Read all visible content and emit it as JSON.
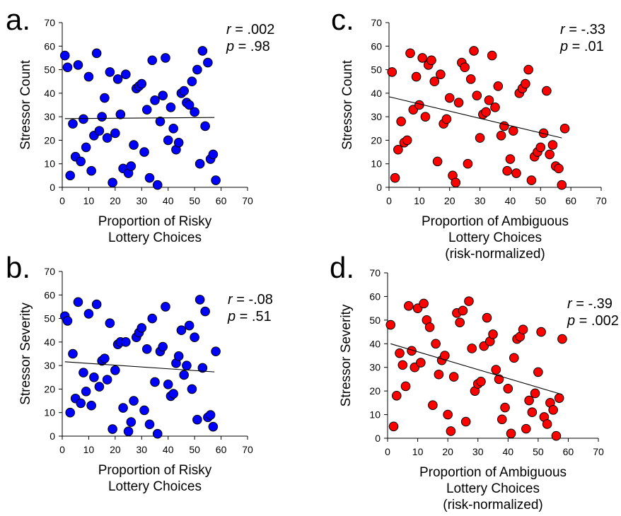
{
  "chart_data": [
    {
      "type": "scatter",
      "panel_label": "a.",
      "color": "#0000ff",
      "xlabel_lines": [
        "Proportion of Risky",
        "Lottery Choices"
      ],
      "ylabel": "Stressor Count",
      "xlim": [
        0,
        70
      ],
      "ylim": [
        0,
        70
      ],
      "xticks": [
        0,
        10,
        20,
        30,
        40,
        50,
        60,
        70
      ],
      "yticks": [
        0,
        10,
        20,
        30,
        40,
        50,
        60,
        70
      ],
      "stats": {
        "r_label": "r",
        "r_value": " = .002",
        "p_label": "p",
        "p_value": " = .98"
      },
      "trend": {
        "x": [
          1,
          57.5
        ],
        "y": [
          29.2,
          29.7
        ]
      },
      "points": [
        [
          1,
          56
        ],
        [
          2,
          51
        ],
        [
          3,
          5
        ],
        [
          4,
          27
        ],
        [
          5,
          13
        ],
        [
          6,
          52
        ],
        [
          7,
          11
        ],
        [
          8,
          29
        ],
        [
          9,
          17
        ],
        [
          10,
          47
        ],
        [
          11,
          7
        ],
        [
          12,
          22
        ],
        [
          13,
          57
        ],
        [
          14,
          24
        ],
        [
          15,
          30
        ],
        [
          16,
          38
        ],
        [
          17,
          21
        ],
        [
          18,
          49
        ],
        [
          19,
          2
        ],
        [
          20,
          23
        ],
        [
          21,
          46
        ],
        [
          22,
          31
        ],
        [
          23,
          8
        ],
        [
          24,
          48
        ],
        [
          25,
          6
        ],
        [
          26,
          9
        ],
        [
          27,
          18
        ],
        [
          28,
          42
        ],
        [
          29,
          43
        ],
        [
          30,
          44
        ],
        [
          31,
          15
        ],
        [
          32,
          33
        ],
        [
          33,
          4
        ],
        [
          34,
          54
        ],
        [
          35,
          37
        ],
        [
          36,
          1
        ],
        [
          37,
          28
        ],
        [
          38,
          39
        ],
        [
          39,
          55
        ],
        [
          40,
          20
        ],
        [
          41,
          34
        ],
        [
          42,
          25
        ],
        [
          43,
          16
        ],
        [
          44,
          19
        ],
        [
          45,
          40
        ],
        [
          46,
          41
        ],
        [
          47,
          36
        ],
        [
          48,
          35
        ],
        [
          49,
          45
        ],
        [
          50,
          32
        ],
        [
          51,
          50
        ],
        [
          52,
          10
        ],
        [
          53,
          58
        ],
        [
          54,
          26
        ],
        [
          55,
          53
        ],
        [
          56,
          12
        ],
        [
          57,
          14
        ],
        [
          58,
          3
        ]
      ]
    },
    {
      "type": "scatter",
      "panel_label": "b.",
      "color": "#0000ff",
      "xlabel_lines": [
        "Proportion of Risky",
        "Lottery Choices"
      ],
      "ylabel": "Stressor Severity",
      "xlim": [
        0,
        70
      ],
      "ylim": [
        0,
        70
      ],
      "xticks": [
        0,
        10,
        20,
        30,
        40,
        50,
        60,
        70
      ],
      "yticks": [
        0,
        10,
        20,
        30,
        40,
        50,
        60,
        70
      ],
      "stats": {
        "r_label": "r",
        "r_value": " = -.08",
        "p_label": "p",
        "p_value": " = .51"
      },
      "trend": {
        "x": [
          1,
          57.5
        ],
        "y": [
          31.6,
          27.3
        ]
      },
      "points": [
        [
          1,
          51
        ],
        [
          2,
          49
        ],
        [
          3,
          10
        ],
        [
          4,
          35
        ],
        [
          5,
          16
        ],
        [
          6,
          57
        ],
        [
          7,
          14
        ],
        [
          8,
          27
        ],
        [
          9,
          19
        ],
        [
          10,
          52
        ],
        [
          11,
          13
        ],
        [
          12,
          25
        ],
        [
          13,
          56
        ],
        [
          14,
          21
        ],
        [
          15,
          32
        ],
        [
          16,
          33
        ],
        [
          17,
          24
        ],
        [
          18,
          48
        ],
        [
          19,
          3
        ],
        [
          20,
          28
        ],
        [
          21,
          39
        ],
        [
          22,
          40
        ],
        [
          23,
          12
        ],
        [
          24,
          40
        ],
        [
          25,
          2
        ],
        [
          26,
          6
        ],
        [
          27,
          15
        ],
        [
          28,
          42
        ],
        [
          29,
          44
        ],
        [
          30,
          46
        ],
        [
          31,
          11
        ],
        [
          32,
          37
        ],
        [
          33,
          5
        ],
        [
          34,
          50
        ],
        [
          35,
          23
        ],
        [
          36,
          1
        ],
        [
          37,
          36
        ],
        [
          38,
          38
        ],
        [
          39,
          55
        ],
        [
          40,
          22
        ],
        [
          41,
          17
        ],
        [
          42,
          18
        ],
        [
          43,
          31
        ],
        [
          44,
          34
        ],
        [
          45,
          45
        ],
        [
          46,
          26
        ],
        [
          47,
          30
        ],
        [
          48,
          47
        ],
        [
          49,
          20
        ],
        [
          50,
          42
        ],
        [
          51,
          7
        ],
        [
          52,
          58
        ],
        [
          53,
          29
        ],
        [
          54,
          53
        ],
        [
          55,
          8
        ],
        [
          56,
          9
        ],
        [
          57,
          4
        ],
        [
          58,
          36
        ]
      ]
    },
    {
      "type": "scatter",
      "panel_label": "c.",
      "color": "#ff0000",
      "xlabel_lines": [
        "Proportion of Ambiguous",
        "Lottery Choices",
        "(risk-normalized)"
      ],
      "ylabel": "Stressor Count",
      "xlim": [
        0,
        70
      ],
      "ylim": [
        0,
        70
      ],
      "xticks": [
        0,
        10,
        20,
        30,
        40,
        50,
        60,
        70
      ],
      "yticks": [
        0,
        10,
        20,
        30,
        40,
        50,
        60,
        70
      ],
      "stats": {
        "r_label": "r",
        "r_value": " = -.33",
        "p_label": "p",
        "p_value": " = .01"
      },
      "trend": {
        "x": [
          0,
          57
        ],
        "y": [
          38.5,
          21
        ]
      },
      "points": [
        [
          1,
          49
        ],
        [
          2,
          4
        ],
        [
          3,
          16
        ],
        [
          4,
          28
        ],
        [
          5,
          19
        ],
        [
          6,
          20
        ],
        [
          7,
          57
        ],
        [
          8,
          33
        ],
        [
          9,
          47
        ],
        [
          10,
          35
        ],
        [
          11,
          55
        ],
        [
          12,
          30
        ],
        [
          13,
          52
        ],
        [
          14,
          54
        ],
        [
          15,
          45
        ],
        [
          16,
          11
        ],
        [
          17,
          48
        ],
        [
          18,
          27
        ],
        [
          19,
          29
        ],
        [
          20,
          38
        ],
        [
          21,
          5
        ],
        [
          22,
          2
        ],
        [
          23,
          36
        ],
        [
          24,
          53
        ],
        [
          25,
          51
        ],
        [
          26,
          10
        ],
        [
          27,
          46
        ],
        [
          28,
          58
        ],
        [
          29,
          39
        ],
        [
          30,
          21
        ],
        [
          31,
          31
        ],
        [
          32,
          32
        ],
        [
          33,
          37
        ],
        [
          34,
          56
        ],
        [
          35,
          34
        ],
        [
          36,
          43
        ],
        [
          37,
          22
        ],
        [
          38,
          26
        ],
        [
          39,
          7
        ],
        [
          40,
          12
        ],
        [
          41,
          24
        ],
        [
          42,
          6
        ],
        [
          43,
          40
        ],
        [
          44,
          42
        ],
        [
          45,
          44
        ],
        [
          46,
          50
        ],
        [
          47,
          3
        ],
        [
          48,
          13
        ],
        [
          49,
          15
        ],
        [
          50,
          17
        ],
        [
          51,
          23
        ],
        [
          52,
          41
        ],
        [
          53,
          14
        ],
        [
          54,
          18
        ],
        [
          55,
          9
        ],
        [
          56,
          8
        ],
        [
          57,
          1
        ],
        [
          58,
          25
        ]
      ]
    },
    {
      "type": "scatter",
      "panel_label": "d.",
      "color": "#ff0000",
      "xlabel_lines": [
        "Proportion of Ambiguous",
        "Lottery Choices",
        "(risk-normalized)"
      ],
      "ylabel": "Stressor Severity",
      "xlim": [
        0,
        70
      ],
      "ylim": [
        0,
        70
      ],
      "xticks": [
        0,
        10,
        20,
        30,
        40,
        50,
        60,
        70
      ],
      "yticks": [
        0,
        10,
        20,
        30,
        40,
        50,
        60,
        70
      ],
      "stats": {
        "r_label": "r",
        "r_value": " = -.39",
        "p_label": "p",
        "p_value": " = .002"
      },
      "trend": {
        "x": [
          1,
          58
        ],
        "y": [
          40,
          18.5
        ]
      },
      "points": [
        [
          1,
          48
        ],
        [
          2,
          5
        ],
        [
          3,
          18
        ],
        [
          4,
          36
        ],
        [
          5,
          31
        ],
        [
          6,
          22
        ],
        [
          7,
          56
        ],
        [
          8,
          37
        ],
        [
          9,
          30
        ],
        [
          10,
          55
        ],
        [
          11,
          32
        ],
        [
          12,
          57
        ],
        [
          13,
          50
        ],
        [
          14,
          47
        ],
        [
          15,
          14
        ],
        [
          16,
          40
        ],
        [
          17,
          27
        ],
        [
          18,
          33
        ],
        [
          19,
          35
        ],
        [
          20,
          10
        ],
        [
          21,
          3
        ],
        [
          22,
          26
        ],
        [
          23,
          53
        ],
        [
          24,
          49
        ],
        [
          25,
          54
        ],
        [
          26,
          7
        ],
        [
          27,
          58
        ],
        [
          28,
          38
        ],
        [
          29,
          20
        ],
        [
          30,
          23
        ],
        [
          31,
          24
        ],
        [
          32,
          39
        ],
        [
          33,
          51
        ],
        [
          34,
          41
        ],
        [
          35,
          44
        ],
        [
          36,
          29
        ],
        [
          37,
          25
        ],
        [
          38,
          8
        ],
        [
          39,
          13
        ],
        [
          40,
          21
        ],
        [
          41,
          2
        ],
        [
          42,
          34
        ],
        [
          43,
          42
        ],
        [
          44,
          43
        ],
        [
          45,
          46
        ],
        [
          46,
          4
        ],
        [
          47,
          16
        ],
        [
          48,
          11
        ],
        [
          49,
          19
        ],
        [
          50,
          28
        ],
        [
          51,
          45
        ],
        [
          52,
          9
        ],
        [
          53,
          6
        ],
        [
          54,
          15
        ],
        [
          55,
          12
        ],
        [
          56,
          1
        ],
        [
          57,
          17
        ],
        [
          58,
          42
        ]
      ]
    }
  ]
}
